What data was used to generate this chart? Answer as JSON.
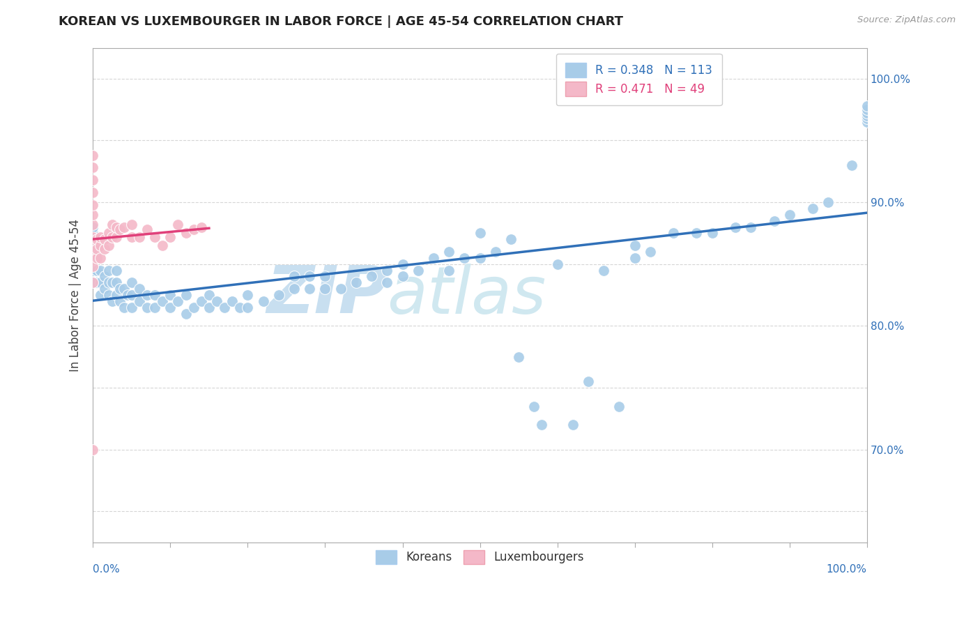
{
  "title": "KOREAN VS LUXEMBOURGER IN LABOR FORCE | AGE 45-54 CORRELATION CHART",
  "source_text": "Source: ZipAtlas.com",
  "ylabel": "In Labor Force | Age 45-54",
  "legend_korean": "Koreans",
  "legend_luxembourger": "Luxembourgers",
  "korean_R": 0.348,
  "korean_N": 113,
  "luxembourger_R": 0.471,
  "luxembourger_N": 49,
  "blue_color": "#a8cce8",
  "pink_color": "#f4b8c8",
  "blue_line_color": "#3070b8",
  "pink_line_color": "#e0407a",
  "blue_text_color": "#3070b8",
  "pink_text_color": "#e0407a",
  "watermark_zip_color": "#c8dff0",
  "watermark_atlas_color": "#d0e8f0",
  "background_color": "#ffffff",
  "grid_color": "#cccccc",
  "xlim": [
    0,
    1
  ],
  "ylim": [
    0.625,
    1.025
  ],
  "korean_x": [
    0.0,
    0.0,
    0.0,
    0.0,
    0.0,
    0.0,
    0.0,
    0.0,
    0.005,
    0.005,
    0.005,
    0.01,
    0.01,
    0.01,
    0.015,
    0.015,
    0.02,
    0.02,
    0.02,
    0.025,
    0.025,
    0.03,
    0.03,
    0.03,
    0.035,
    0.035,
    0.04,
    0.04,
    0.045,
    0.05,
    0.05,
    0.05,
    0.06,
    0.06,
    0.07,
    0.07,
    0.08,
    0.08,
    0.09,
    0.1,
    0.1,
    0.11,
    0.12,
    0.12,
    0.13,
    0.14,
    0.15,
    0.15,
    0.16,
    0.17,
    0.18,
    0.19,
    0.2,
    0.2,
    0.22,
    0.24,
    0.26,
    0.26,
    0.28,
    0.28,
    0.3,
    0.3,
    0.32,
    0.34,
    0.36,
    0.38,
    0.38,
    0.4,
    0.4,
    0.42,
    0.44,
    0.46,
    0.46,
    0.48,
    0.5,
    0.5,
    0.52,
    0.54,
    0.55,
    0.57,
    0.58,
    0.6,
    0.62,
    0.64,
    0.66,
    0.68,
    0.7,
    0.7,
    0.72,
    0.75,
    0.78,
    0.8,
    0.83,
    0.85,
    0.88,
    0.9,
    0.93,
    0.95,
    0.98,
    1.0,
    1.0,
    1.0,
    1.0,
    1.0,
    1.0
  ],
  "korean_y": [
    0.835,
    0.845,
    0.855,
    0.86,
    0.865,
    0.87,
    0.875,
    0.88,
    0.835,
    0.845,
    0.855,
    0.825,
    0.835,
    0.845,
    0.83,
    0.84,
    0.825,
    0.835,
    0.845,
    0.82,
    0.835,
    0.825,
    0.835,
    0.845,
    0.82,
    0.83,
    0.815,
    0.83,
    0.825,
    0.815,
    0.825,
    0.835,
    0.82,
    0.83,
    0.815,
    0.825,
    0.815,
    0.825,
    0.82,
    0.815,
    0.825,
    0.82,
    0.81,
    0.825,
    0.815,
    0.82,
    0.815,
    0.825,
    0.82,
    0.815,
    0.82,
    0.815,
    0.815,
    0.825,
    0.82,
    0.825,
    0.83,
    0.84,
    0.83,
    0.84,
    0.83,
    0.84,
    0.83,
    0.835,
    0.84,
    0.835,
    0.845,
    0.84,
    0.85,
    0.845,
    0.855,
    0.845,
    0.86,
    0.855,
    0.855,
    0.875,
    0.86,
    0.87,
    0.775,
    0.735,
    0.72,
    0.85,
    0.72,
    0.755,
    0.845,
    0.735,
    0.855,
    0.865,
    0.86,
    0.875,
    0.875,
    0.875,
    0.88,
    0.88,
    0.885,
    0.89,
    0.895,
    0.9,
    0.93,
    0.965,
    0.968,
    0.97,
    0.972,
    0.975,
    0.978
  ],
  "lux_x": [
    0.0,
    0.0,
    0.0,
    0.0,
    0.0,
    0.0,
    0.0,
    0.0,
    0.0,
    0.0,
    0.0,
    0.0,
    0.005,
    0.005,
    0.005,
    0.01,
    0.01,
    0.01,
    0.015,
    0.015,
    0.02,
    0.02,
    0.025,
    0.025,
    0.03,
    0.03,
    0.035,
    0.04,
    0.05,
    0.05,
    0.06,
    0.07,
    0.08,
    0.09,
    0.1,
    0.11,
    0.12,
    0.13,
    0.14,
    0.0
  ],
  "lux_y": [
    0.835,
    0.848,
    0.858,
    0.865,
    0.872,
    0.882,
    0.89,
    0.898,
    0.908,
    0.918,
    0.928,
    0.938,
    0.855,
    0.862,
    0.87,
    0.855,
    0.865,
    0.872,
    0.862,
    0.87,
    0.865,
    0.875,
    0.872,
    0.882,
    0.872,
    0.88,
    0.878,
    0.88,
    0.872,
    0.882,
    0.872,
    0.878,
    0.872,
    0.865,
    0.872,
    0.882,
    0.875,
    0.878,
    0.88,
    0.7
  ]
}
